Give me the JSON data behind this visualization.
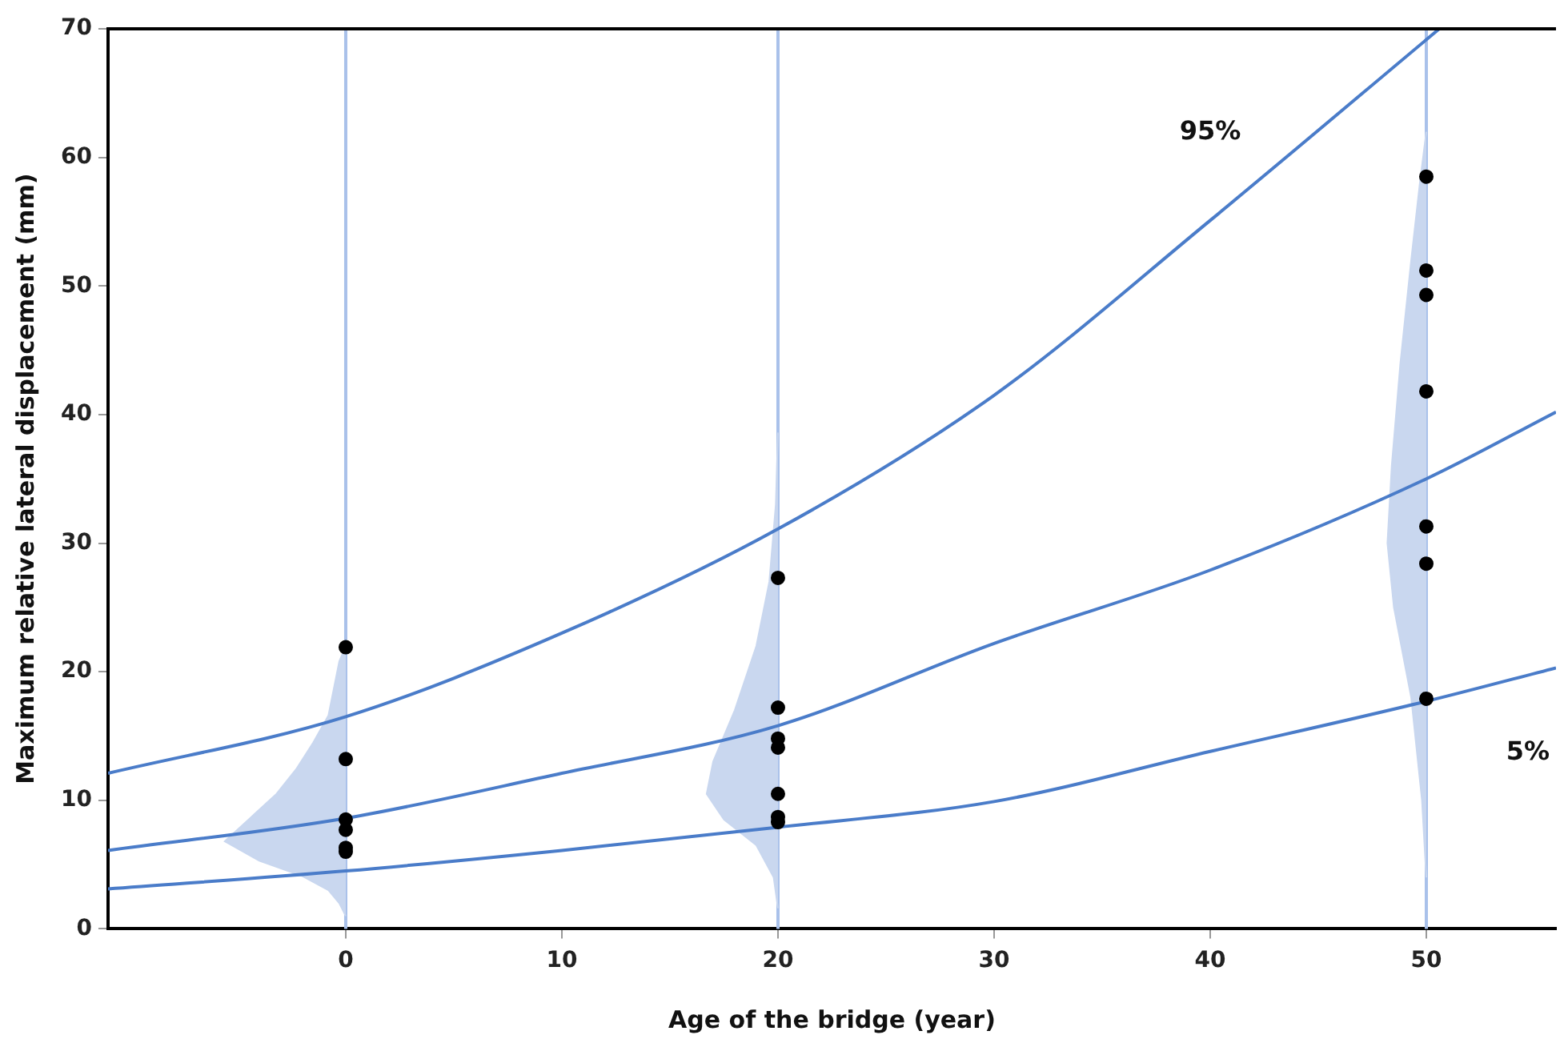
{
  "chart_data": {
    "type": "scatter",
    "xlabel": "Age of the bridge (year)",
    "ylabel": "Maximum relative lateral displacement (mm)",
    "xlim": [
      -11,
      56
    ],
    "xticks": [
      0,
      10,
      20,
      30,
      40,
      50
    ],
    "ylim": [
      0,
      70
    ],
    "yticks": [
      0,
      10,
      20,
      30,
      40,
      50,
      60,
      70
    ],
    "grid": false,
    "legend": false,
    "ref_lines": [
      {
        "axis": "x",
        "value": 0,
        "color": "#a9c1ea"
      },
      {
        "axis": "x",
        "value": 20,
        "color": "#a9c1ea"
      },
      {
        "axis": "x",
        "value": 50,
        "color": "#a9c1ea"
      }
    ],
    "series": [
      {
        "type": "area",
        "color": "#c9d7ef",
        "x": [
          0,
          -0.3,
          -0.8,
          -2,
          -4,
          -5.6,
          -4.5,
          -3.2,
          -2.3,
          -1.5,
          -0.8,
          -0.3,
          0
        ],
        "values": [
          1,
          2,
          3,
          4.1,
          5.3,
          6.8,
          8.5,
          10.5,
          12.4,
          14.5,
          16.6,
          20.8,
          22
        ]
      },
      {
        "type": "area",
        "color": "#c9d7ef",
        "x": [
          20,
          19.8,
          19,
          17.5,
          16.7,
          17,
          18,
          19,
          19.6,
          19.9,
          20
        ],
        "values": [
          1.6,
          4,
          6.5,
          8.5,
          10.5,
          13,
          17,
          22,
          27,
          33,
          38.6
        ]
      },
      {
        "type": "area",
        "color": "#c9d7ef",
        "x": [
          50,
          49.8,
          49.3,
          48.5,
          48.2,
          48.4,
          48.8,
          49.3,
          49.7,
          50
        ],
        "values": [
          4,
          10,
          18,
          25,
          30,
          36,
          44,
          52,
          58,
          62
        ]
      },
      {
        "type": "line",
        "color": "#4a7cc9",
        "x": [
          -11,
          0,
          10,
          20,
          30,
          40,
          50.6
        ],
        "values": [
          12.1,
          16.5,
          23.0,
          31.1,
          41.5,
          55.1,
          70
        ]
      },
      {
        "type": "line",
        "color": "#4a7cc9",
        "x": [
          -11,
          0,
          10,
          20,
          30,
          40,
          50,
          56
        ],
        "values": [
          6.1,
          8.6,
          12.1,
          15.8,
          22.2,
          27.9,
          35.0,
          40.2
        ]
      },
      {
        "type": "line",
        "color": "#4a7cc9",
        "x": [
          -11,
          0,
          10,
          20,
          30,
          40,
          50,
          56
        ],
        "values": [
          3.1,
          4.5,
          6.1,
          7.9,
          9.9,
          13.8,
          17.7,
          20.3
        ]
      },
      {
        "color": "#000000",
        "marker": "circle",
        "x": [
          0,
          0,
          0,
          0,
          0,
          0,
          20,
          20,
          20,
          20,
          20,
          20,
          20,
          50,
          50,
          50,
          50,
          50,
          50,
          50
        ],
        "values": [
          21.9,
          13.2,
          8.5,
          7.7,
          6.3,
          6.0,
          27.3,
          17.2,
          14.8,
          14.1,
          10.5,
          8.7,
          8.3,
          58.5,
          51.2,
          49.3,
          41.8,
          31.3,
          28.4,
          17.9
        ]
      }
    ],
    "annotations": [
      {
        "text": "95%",
        "x": 40,
        "y": 55.1
      },
      {
        "text": "5%",
        "x": 56,
        "y": 20.3
      }
    ]
  }
}
